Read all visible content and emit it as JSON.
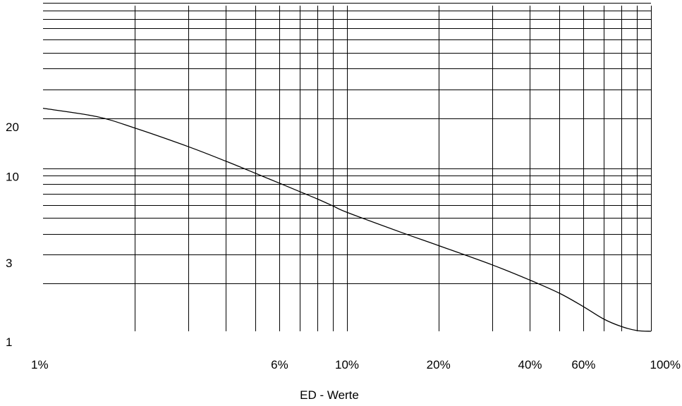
{
  "chart_data": {
    "type": "line",
    "xscale": "log",
    "yscale": "log",
    "xlim": [
      1,
      100
    ],
    "ylim": [
      1,
      100
    ],
    "xlabel": "ED - Werte",
    "ylabel": "",
    "grid": true,
    "x_ticks": [
      {
        "value": 1,
        "label": "1%"
      },
      {
        "value": 6,
        "label": "6%"
      },
      {
        "value": 10,
        "label": "10%"
      },
      {
        "value": 20,
        "label": "20%"
      },
      {
        "value": 40,
        "label": "40%"
      },
      {
        "value": 60,
        "label": "60%"
      },
      {
        "value": 100,
        "label": "100%"
      }
    ],
    "y_ticks": [
      {
        "value": 1,
        "label": "1"
      },
      {
        "value": 3,
        "label": "3"
      },
      {
        "value": 10,
        "label": "10"
      },
      {
        "value": 20,
        "label": "20"
      }
    ],
    "x_gridlines": [
      2,
      3,
      4,
      5,
      6,
      7,
      8,
      9,
      10,
      20,
      30,
      40,
      50,
      60,
      70,
      80,
      90,
      100
    ],
    "y_gridlines": [
      2,
      3,
      4,
      5,
      6,
      7,
      8,
      9,
      10,
      20,
      30,
      40,
      50,
      60,
      70,
      80,
      90,
      100
    ],
    "series": [
      {
        "x": [
          1,
          1.5,
          2,
          3,
          4,
          5,
          6,
          7,
          8,
          9,
          10,
          15,
          20,
          30,
          40,
          50,
          60,
          70,
          80,
          90,
          100
        ],
        "y": [
          23,
          20.5,
          17.5,
          13.5,
          11,
          9.3,
          8.1,
          7.2,
          6.5,
          5.9,
          5.4,
          4.1,
          3.4,
          2.6,
          2.1,
          1.75,
          1.45,
          1.22,
          1.1,
          1.04,
          1.03
        ]
      }
    ]
  }
}
